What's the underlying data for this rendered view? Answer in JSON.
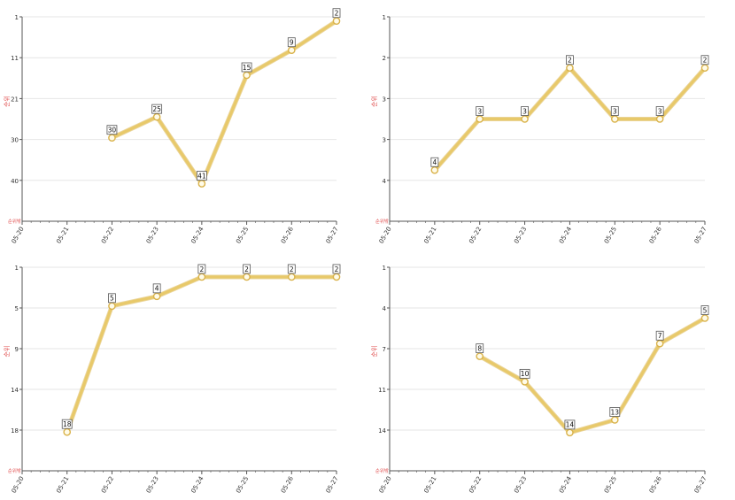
{
  "colors": {
    "line": "#e8c96a",
    "line_stroke": "#d9b24a",
    "marker_fill": "#fffbe8",
    "grid": "#e6e6e6",
    "axis": "#555555",
    "tick_text": "#333333",
    "ylabel": "#e05050",
    "label_border": "#555555"
  },
  "chart_data": [
    {
      "type": "line",
      "categories": [
        "05-20",
        "05-21",
        "05-22",
        "05-23",
        "05-24",
        "05-25",
        "05-26",
        "05-27"
      ],
      "values": [
        null,
        null,
        30,
        25,
        41,
        15,
        9,
        2
      ],
      "ylabel": "순위",
      "axis_corner_label": "순위밖",
      "yticks": [
        "1",
        "11",
        "21",
        "30",
        "40"
      ],
      "ylim": [
        1,
        50
      ],
      "y_inverted": true,
      "grid": true
    },
    {
      "type": "line",
      "categories": [
        "05-20",
        "05-21",
        "05-22",
        "05-23",
        "05-24",
        "05-25",
        "05-26",
        "05-27"
      ],
      "values": [
        null,
        4,
        3,
        3,
        2,
        3,
        3,
        2
      ],
      "ylabel": "순위",
      "axis_corner_label": "순위밖",
      "yticks": [
        "1",
        "2",
        "3",
        "3",
        "4"
      ],
      "ylim": [
        1,
        5
      ],
      "y_inverted": true,
      "grid": true
    },
    {
      "type": "line",
      "categories": [
        "05-20",
        "05-21",
        "05-22",
        "05-23",
        "05-24",
        "05-25",
        "05-26",
        "05-27"
      ],
      "values": [
        null,
        18,
        5,
        4,
        2,
        2,
        2,
        2
      ],
      "ylabel": "순위",
      "axis_corner_label": "순위밖",
      "yticks": [
        "1",
        "5",
        "9",
        "14",
        "18"
      ],
      "ylim": [
        1,
        22
      ],
      "y_inverted": true,
      "grid": true
    },
    {
      "type": "line",
      "categories": [
        "05-20",
        "05-21",
        "05-22",
        "05-23",
        "05-24",
        "05-25",
        "05-26",
        "05-27"
      ],
      "values": [
        null,
        null,
        8,
        10,
        14,
        13,
        7,
        5
      ],
      "ylabel": "순위",
      "axis_corner_label": "순위밖",
      "yticks": [
        "1",
        "4",
        "7",
        "11",
        "14"
      ],
      "ylim": [
        1,
        17
      ],
      "y_inverted": true,
      "grid": true
    }
  ]
}
